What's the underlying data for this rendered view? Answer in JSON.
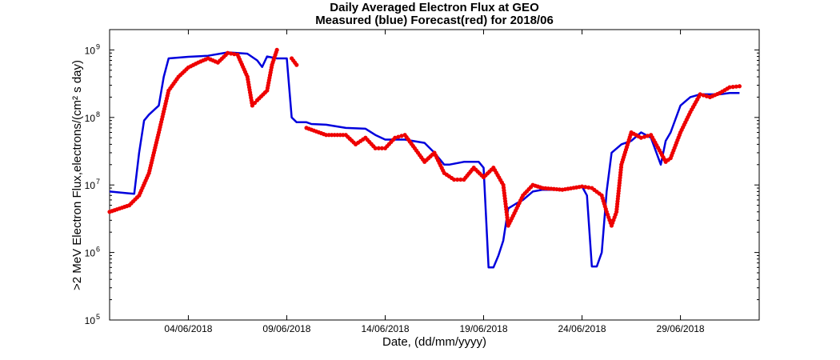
{
  "chart_data": {
    "type": "line",
    "title": "Daily Averaged Electron Flux at GEO",
    "subtitle": "Measured (blue) Forecast(red) for 2018/06",
    "xlabel": "Date, (dd/mm/yyyy)",
    "ylabel": ">2 MeV Electron Flux,electrons/(cm² s day)",
    "yscale": "log",
    "ylim": [
      100000,
      2000000000
    ],
    "xlim": [
      "2018-05-31",
      "2018-07-03"
    ],
    "grid": false,
    "xticks": [
      "04/06/2018",
      "09/06/2018",
      "14/06/2018",
      "19/06/2018",
      "24/06/2018",
      "29/06/2018"
    ],
    "yticks": [
      {
        "value": 100000,
        "label": "10",
        "exp": "5"
      },
      {
        "value": 1000000,
        "label": "10",
        "exp": "6"
      },
      {
        "value": 10000000,
        "label": "10",
        "exp": "7"
      },
      {
        "value": 100000000,
        "label": "10",
        "exp": "8"
      },
      {
        "value": 1000000000,
        "label": "10",
        "exp": "9"
      }
    ],
    "series": [
      {
        "name": "Measured",
        "color": "#0000dd",
        "style": "line",
        "points": [
          [
            "2018-05-31",
            8000000
          ],
          [
            "2018-06-01",
            7500000
          ],
          [
            "2018-06-01T06:00",
            7400000
          ],
          [
            "2018-06-01T12:00",
            30000000
          ],
          [
            "2018-06-01T18:00",
            90000000
          ],
          [
            "2018-06-02",
            110000000
          ],
          [
            "2018-06-02T12:00",
            150000000
          ],
          [
            "2018-06-02T18:00",
            400000000
          ],
          [
            "2018-06-03",
            750000000
          ],
          [
            "2018-06-04",
            790000000
          ],
          [
            "2018-06-05",
            820000000
          ],
          [
            "2018-06-06",
            920000000
          ],
          [
            "2018-06-06T12:00",
            900000000
          ],
          [
            "2018-06-07",
            880000000
          ],
          [
            "2018-06-07T12:00",
            700000000
          ],
          [
            "2018-06-07T18:00",
            560000000
          ],
          [
            "2018-06-08",
            800000000
          ],
          [
            "2018-06-08T12:00",
            750000000
          ],
          [
            "2018-06-09",
            750000000
          ],
          [
            "2018-06-09T06:00",
            100000000
          ],
          [
            "2018-06-09T12:00",
            85000000
          ],
          [
            "2018-06-10",
            85000000
          ],
          [
            "2018-06-10T06:00",
            80000000
          ],
          [
            "2018-06-11",
            78000000
          ],
          [
            "2018-06-12",
            70000000
          ],
          [
            "2018-06-13",
            68000000
          ],
          [
            "2018-06-13T12:00",
            55000000
          ],
          [
            "2018-06-14",
            47000000
          ],
          [
            "2018-06-15",
            47000000
          ],
          [
            "2018-06-16",
            42000000
          ],
          [
            "2018-06-16T12:00",
            30000000
          ],
          [
            "2018-06-17",
            20000000
          ],
          [
            "2018-06-17T06:00",
            20000000
          ],
          [
            "2018-06-18",
            22000000
          ],
          [
            "2018-06-18T18:00",
            22000000
          ],
          [
            "2018-06-19",
            18000000
          ],
          [
            "2018-06-19T06:00",
            600000
          ],
          [
            "2018-06-19T12:00",
            600000
          ],
          [
            "2018-06-19T18:00",
            900000
          ],
          [
            "2018-06-20",
            1500000
          ],
          [
            "2018-06-20T06:00",
            4500000
          ],
          [
            "2018-06-20T18:00",
            5500000
          ],
          [
            "2018-06-21",
            6000000
          ],
          [
            "2018-06-21T12:00",
            8000000
          ],
          [
            "2018-06-22",
            8500000
          ],
          [
            "2018-06-23",
            8500000
          ],
          [
            "2018-06-23T12:00",
            9000000
          ],
          [
            "2018-06-24",
            9500000
          ],
          [
            "2018-06-24T06:00",
            7000000
          ],
          [
            "2018-06-24T12:00",
            620000
          ],
          [
            "2018-06-24T18:00",
            620000
          ],
          [
            "2018-06-25",
            1000000
          ],
          [
            "2018-06-25T06:00",
            8000000
          ],
          [
            "2018-06-25T12:00",
            30000000
          ],
          [
            "2018-06-26",
            40000000
          ],
          [
            "2018-06-26T12:00",
            45000000
          ],
          [
            "2018-06-27",
            60000000
          ],
          [
            "2018-06-27T12:00",
            50000000
          ],
          [
            "2018-06-28",
            20000000
          ],
          [
            "2018-06-28T06:00",
            45000000
          ],
          [
            "2018-06-28T12:00",
            60000000
          ],
          [
            "2018-06-29",
            150000000
          ],
          [
            "2018-06-29T12:00",
            200000000
          ],
          [
            "2018-06-30",
            220000000
          ],
          [
            "2018-07-01",
            220000000
          ],
          [
            "2018-07-01T12:00",
            230000000
          ],
          [
            "2018-07-02",
            230000000
          ]
        ]
      },
      {
        "name": "Forecast",
        "color": "#ee0000",
        "style": "dots",
        "points": [
          [
            "2018-05-31",
            4000000
          ],
          [
            "2018-06-01",
            5000000
          ],
          [
            "2018-06-01T12:00",
            7000000
          ],
          [
            "2018-06-02",
            15000000
          ],
          [
            "2018-06-02T12:00",
            60000000
          ],
          [
            "2018-06-03",
            250000000
          ],
          [
            "2018-06-03T12:00",
            400000000
          ],
          [
            "2018-06-04",
            550000000
          ],
          [
            "2018-06-04T12:00",
            650000000
          ],
          [
            "2018-06-05",
            750000000
          ],
          [
            "2018-06-05T12:00",
            650000000
          ],
          [
            "2018-06-06",
            900000000
          ],
          [
            "2018-06-06T12:00",
            850000000
          ],
          [
            "2018-06-07",
            400000000
          ],
          [
            "2018-06-07T06:00",
            150000000
          ],
          [
            "2018-06-07T12:00",
            180000000
          ],
          [
            "2018-06-08",
            250000000
          ],
          [
            "2018-06-08T06:00",
            600000000
          ],
          [
            "2018-06-08T12:00",
            1000000000
          ],
          [
            "gap",
            null
          ],
          [
            "2018-06-09T06:00",
            750000000
          ],
          [
            "2018-06-09T12:00",
            600000000
          ],
          [
            "gap",
            null
          ],
          [
            "2018-06-10",
            70000000
          ],
          [
            "2018-06-11",
            55000000
          ],
          [
            "2018-06-12",
            55000000
          ],
          [
            "2018-06-12T12:00",
            40000000
          ],
          [
            "2018-06-13",
            50000000
          ],
          [
            "2018-06-13T12:00",
            35000000
          ],
          [
            "2018-06-14",
            35000000
          ],
          [
            "2018-06-14T12:00",
            50000000
          ],
          [
            "2018-06-15",
            55000000
          ],
          [
            "2018-06-15T12:00",
            35000000
          ],
          [
            "2018-06-16",
            22000000
          ],
          [
            "2018-06-16T12:00",
            30000000
          ],
          [
            "2018-06-17",
            15000000
          ],
          [
            "2018-06-17T12:00",
            12000000
          ],
          [
            "2018-06-18",
            12000000
          ],
          [
            "2018-06-18T12:00",
            18000000
          ],
          [
            "2018-06-19",
            13000000
          ],
          [
            "2018-06-19T12:00",
            18000000
          ],
          [
            "2018-06-20",
            10000000
          ],
          [
            "2018-06-20T06:00",
            2500000
          ],
          [
            "2018-06-20T12:00",
            3500000
          ],
          [
            "2018-06-21",
            7000000
          ],
          [
            "2018-06-21T12:00",
            10000000
          ],
          [
            "2018-06-22",
            9000000
          ],
          [
            "2018-06-23",
            8500000
          ],
          [
            "2018-06-24",
            9500000
          ],
          [
            "2018-06-24T12:00",
            9000000
          ],
          [
            "2018-06-25",
            7000000
          ],
          [
            "2018-06-25T06:00",
            4000000
          ],
          [
            "2018-06-25T12:00",
            2500000
          ],
          [
            "2018-06-25T18:00",
            4000000
          ],
          [
            "2018-06-26",
            20000000
          ],
          [
            "2018-06-26T12:00",
            60000000
          ],
          [
            "2018-06-27",
            50000000
          ],
          [
            "2018-06-27T12:00",
            55000000
          ],
          [
            "2018-06-28",
            30000000
          ],
          [
            "2018-06-28T06:00",
            22000000
          ],
          [
            "2018-06-28T12:00",
            25000000
          ],
          [
            "2018-06-29",
            60000000
          ],
          [
            "2018-06-29T12:00",
            120000000
          ],
          [
            "2018-06-30",
            220000000
          ],
          [
            "2018-06-30T12:00",
            200000000
          ],
          [
            "2018-07-01",
            230000000
          ],
          [
            "2018-07-01T12:00",
            280000000
          ],
          [
            "2018-07-02",
            290000000
          ]
        ]
      }
    ]
  }
}
